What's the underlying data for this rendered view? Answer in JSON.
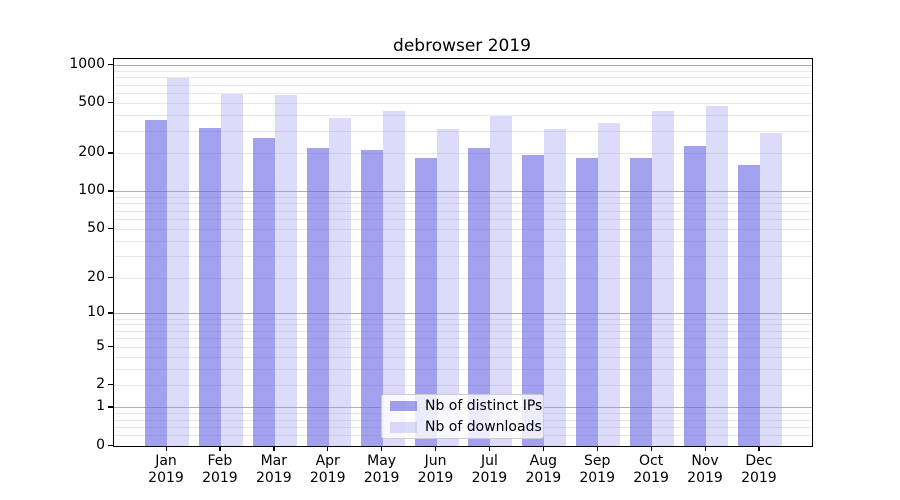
{
  "chart_data": {
    "type": "bar",
    "title": "debrowser 2019",
    "categories": [
      "Jan",
      "Feb",
      "Mar",
      "Apr",
      "May",
      "Jun",
      "Jul",
      "Aug",
      "Sep",
      "Oct",
      "Nov",
      "Dec"
    ],
    "year": "2019",
    "series": [
      {
        "name": "Nb of distinct IPs",
        "color": "rgba(104,104,226,0.62)",
        "solid_color": "#a1a1f0",
        "values": [
          369,
          322,
          266,
          224,
          213,
          187,
          224,
          195,
          187,
          186,
          231,
          163
        ]
      },
      {
        "name": "Nb of downloads",
        "color": "rgba(150,150,240,0.33)",
        "solid_color": "#dcdcfa",
        "values": [
          793,
          593,
          585,
          387,
          437,
          313,
          399,
          315,
          351,
          437,
          478,
          294
        ]
      }
    ],
    "y_ticks": [
      1000,
      500,
      200,
      100,
      50,
      20,
      10,
      5,
      2,
      1,
      0
    ],
    "yscale": "symlog",
    "ylim": [
      0,
      1125
    ],
    "xlabel": "",
    "ylabel": "",
    "grid": true,
    "legend_position": "lower center"
  },
  "colors": {
    "grid_major": "#b0b0b0",
    "grid_minor": "#e8e8e8",
    "axis": "#000000",
    "background": "#ffffff"
  }
}
